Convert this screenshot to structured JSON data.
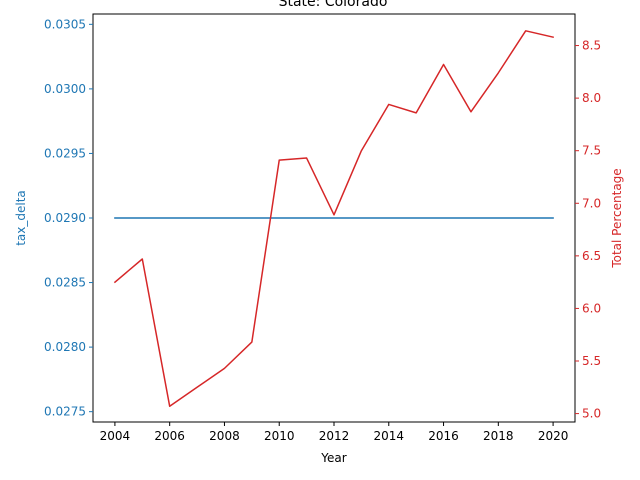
{
  "chart_data": {
    "type": "line",
    "title": "State: Colorado",
    "xlabel": "Year",
    "ylabel_left": "tax_delta",
    "ylabel_right": "Total Percentage",
    "x": [
      2004,
      2005,
      2006,
      2007,
      2008,
      2009,
      2010,
      2011,
      2012,
      2013,
      2014,
      2015,
      2016,
      2017,
      2018,
      2019,
      2020
    ],
    "xticks": [
      "2004",
      "2006",
      "2008",
      "2010",
      "2012",
      "2014",
      "2016",
      "2018",
      "2020"
    ],
    "xlim": [
      2003.2,
      2020.8
    ],
    "yticks_left": [
      "0.0275",
      "0.0280",
      "0.0285",
      "0.0290",
      "0.0295",
      "0.0300",
      "0.0305"
    ],
    "ylim_left": [
      0.02742,
      0.03058
    ],
    "yticks_right": [
      "5.0",
      "5.5",
      "6.0",
      "6.5",
      "7.0",
      "7.5",
      "8.0",
      "8.5"
    ],
    "ylim_right": [
      4.92,
      8.8
    ],
    "series": [
      {
        "axis": "left",
        "color": "#1f77b4",
        "values": [
          0.029,
          0.029,
          0.029,
          0.029,
          0.029,
          0.029,
          0.029,
          0.029,
          0.029,
          0.029,
          0.029,
          0.029,
          0.029,
          0.029,
          0.029,
          0.029,
          0.029
        ]
      },
      {
        "axis": "right",
        "color": "#d62728",
        "values": [
          6.25,
          6.47,
          5.07,
          5.25,
          5.43,
          5.68,
          7.41,
          7.43,
          6.89,
          7.5,
          7.94,
          7.86,
          8.32,
          7.87,
          8.24,
          8.64,
          8.58
        ]
      }
    ],
    "grid": false
  }
}
